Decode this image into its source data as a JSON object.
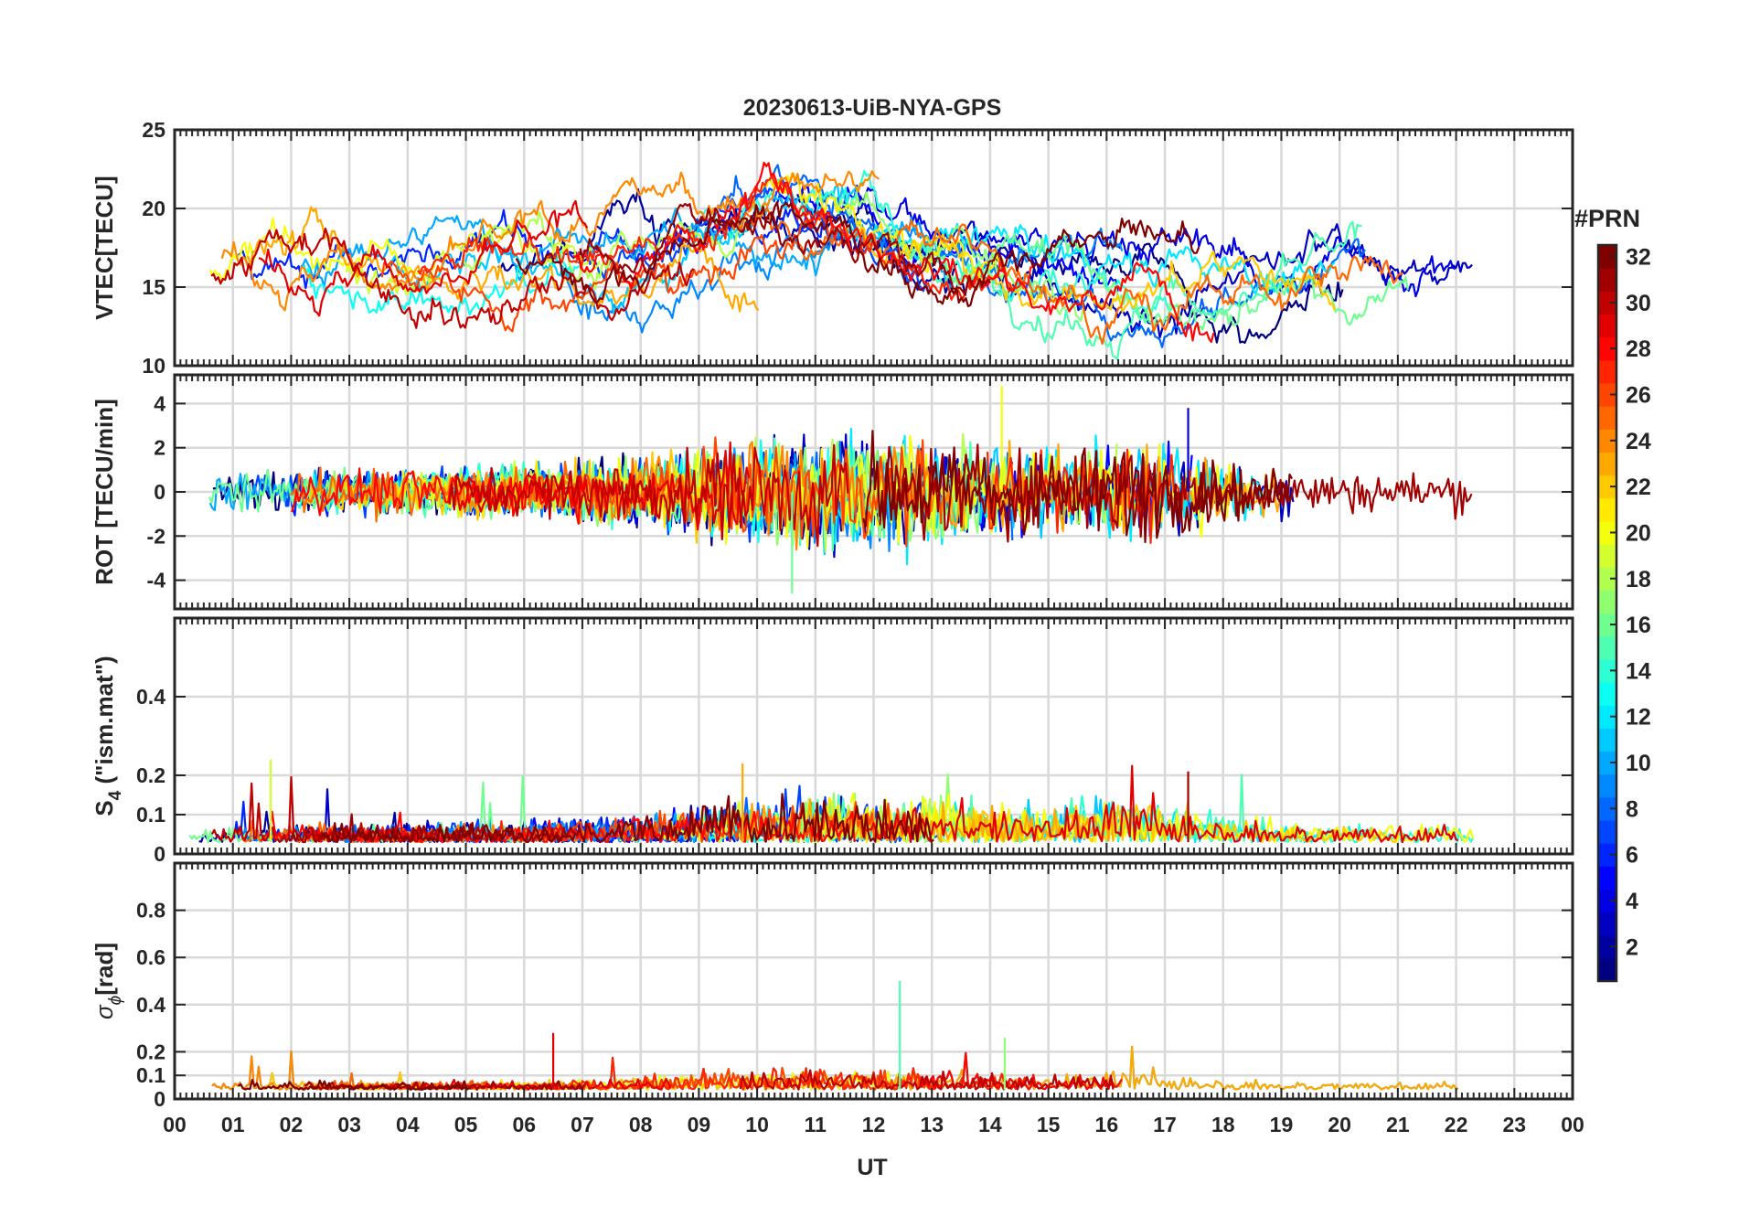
{
  "chart_data": {
    "type": "line",
    "title": "20230613-UiB-NYA-GPS",
    "xlabel": "UT",
    "x_tick_labels": [
      "00",
      "01",
      "02",
      "03",
      "04",
      "05",
      "06",
      "07",
      "08",
      "09",
      "10",
      "11",
      "12",
      "13",
      "14",
      "15",
      "16",
      "17",
      "18",
      "19",
      "20",
      "21",
      "22",
      "23",
      "00"
    ],
    "xlim_hours": [
      0,
      24
    ],
    "data_end_hour": 22.3,
    "colorbar": {
      "label": "#PRN",
      "range": [
        1,
        32
      ],
      "ticks": [
        2,
        4,
        6,
        8,
        10,
        12,
        14,
        16,
        18,
        20,
        22,
        24,
        26,
        28,
        30,
        32
      ],
      "tick_labels": [
        "2",
        "4",
        "6",
        "8",
        "10",
        "12",
        "14",
        "16",
        "18",
        "20",
        "22",
        "24",
        "26",
        "28",
        "30",
        "32"
      ],
      "colormap": "jet"
    },
    "panels": [
      {
        "id": "vtec",
        "ylabel": "VTEC[TECU]",
        "ylim": [
          10,
          25
        ],
        "yticks": [
          10,
          15,
          20,
          25
        ],
        "ytick_labels": [
          "10",
          "15",
          "20",
          "25"
        ],
        "baseline": 16.5,
        "noise": 0.6,
        "grid": true
      },
      {
        "id": "rot",
        "ylabel": "ROT [TECU/min]",
        "ylim": [
          -5.3,
          5.3
        ],
        "yticks": [
          -4,
          -2,
          0,
          2,
          4
        ],
        "ytick_labels": [
          "-4",
          "-2",
          "0",
          "2",
          "4"
        ],
        "baseline": 0,
        "noise": 0.45,
        "grid": true
      },
      {
        "id": "s4",
        "ylabel_main": "S",
        "ylabel_sub": "4",
        "ylabel_rest": "  (\"ism.mat\")",
        "ylim": [
          0,
          0.6
        ],
        "yticks": [
          0,
          0.1,
          0.2,
          0.4
        ],
        "ytick_labels": [
          "0",
          "0.1",
          "0.2",
          "0.4"
        ],
        "baseline": 0.03,
        "noise": 0.02,
        "grid": true
      },
      {
        "id": "sigma_phi",
        "ylabel_main": "σ",
        "ylabel_sub": "ϕ",
        "ylabel_rest": "[rad]",
        "ylim": [
          0,
          1
        ],
        "yticks": [
          0,
          0.1,
          0.2,
          0.4,
          0.6,
          0.8
        ],
        "ytick_labels": [
          "0",
          "0.1",
          "0.2",
          "0.4",
          "0.6",
          "0.8"
        ],
        "baseline": 0.04,
        "noise": 0.015,
        "grid": true
      }
    ],
    "notable_peaks": {
      "vtec_max": 24,
      "rot_max": 4.8,
      "rot_min": -4.6,
      "s4_max": 0.24,
      "sigma_phi_max": 0.5
    }
  }
}
